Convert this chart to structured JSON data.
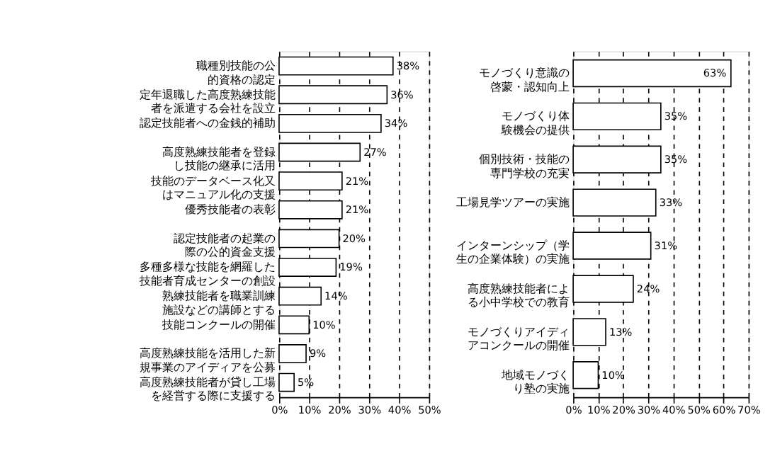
{
  "chart_data": [
    {
      "type": "bar",
      "orientation": "horizontal",
      "categories": [
        "職種別技能の公的資格の認定",
        "定年退職した高度熟練技能者を派遣する会社を設立",
        "認定技能者への金銭的補助",
        "高度熟練技能者を登録し技能の継承に活用",
        "技能のデータベース化又はマニュアル化の支援",
        "優秀技能者の表彰",
        "認定技能者の起業の際の公的資金支援",
        "多種多様な技能を網羅した技能者育成センターの創設",
        "熟練技能者を職業訓練施設などの講師とする",
        "技能コンクールの開催",
        "高度熟練技能を活用した新規事業のアイディアを公募",
        "高度熟練技能者が貸し工場を経営する際に支援する"
      ],
      "values": [
        38,
        36,
        34,
        27,
        21,
        21,
        20,
        19,
        14,
        10,
        9,
        5
      ],
      "value_labels": [
        "38%",
        "36%",
        "34%",
        "27%",
        "21%",
        "21%",
        "20%",
        "19%",
        "14%",
        "10%",
        "9%",
        "5%"
      ],
      "color": "#ffffff",
      "xlim": [
        0,
        50
      ],
      "xticks": [
        {
          "value": 0,
          "label": "0%"
        },
        {
          "value": 10,
          "label": "10%"
        },
        {
          "value": 20,
          "label": "20%"
        },
        {
          "value": 30,
          "label": "30%"
        },
        {
          "value": 40,
          "label": "40%"
        },
        {
          "value": 50,
          "label": "50%"
        }
      ],
      "grid": "x"
    },
    {
      "type": "bar",
      "orientation": "horizontal",
      "categories": [
        "モノづくり意識の啓蒙・認知向上",
        "モノづくり体験機会の提供",
        "個別技術・技能の専門学校の充実",
        "工場見学ツアーの実施",
        "インターンシップ（学生の企業体験）の実施",
        "高度熟練技能者による小中学校での教育",
        "モノづくりアイディアコンクールの開催",
        "地域モノづくり塾の実施"
      ],
      "values": [
        63,
        35,
        35,
        33,
        31,
        24,
        13,
        10
      ],
      "value_labels": [
        "63%",
        "35%",
        "35%",
        "33%",
        "31%",
        "24%",
        "13%",
        "10%"
      ],
      "color": "#ffffff",
      "xlim": [
        0,
        70
      ],
      "xticks": [
        {
          "value": 0,
          "label": "0%"
        },
        {
          "value": 10,
          "label": "10%"
        },
        {
          "value": 20,
          "label": "20%"
        },
        {
          "value": 30,
          "label": "30%"
        },
        {
          "value": 40,
          "label": "40%"
        },
        {
          "value": 50,
          "label": "50%"
        },
        {
          "value": 60,
          "label": "60%"
        },
        {
          "value": 70,
          "label": "70%"
        }
      ],
      "grid": "x"
    }
  ]
}
